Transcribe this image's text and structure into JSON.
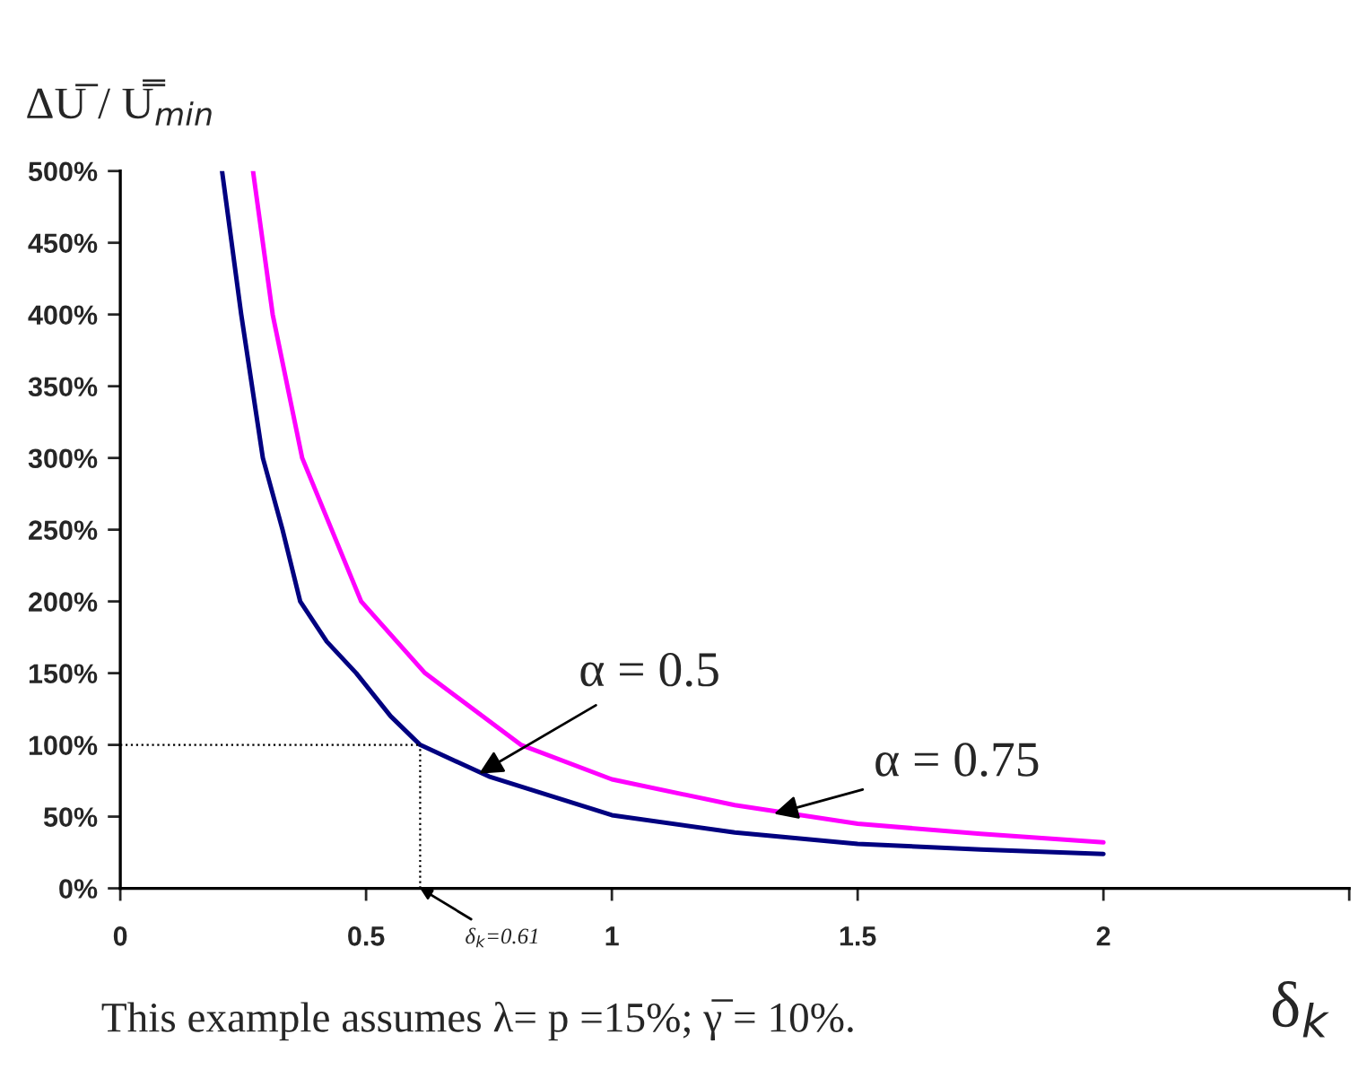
{
  "chart_data": {
    "type": "line",
    "ylabel": "ΔU̅ / U̿$_{min}$",
    "xlabel": "δ$_{k}$",
    "series": [
      {
        "color": "#000080",
        "x": [
          0.207,
          0.246,
          0.29,
          0.33,
          0.366,
          0.42,
          0.48,
          0.55,
          0.61,
          0.75,
          1.0,
          1.25,
          1.5,
          1.75,
          2.0
        ],
        "values": [
          500,
          400,
          300,
          250,
          200,
          172,
          150,
          120,
          100,
          78,
          51,
          39,
          31,
          27,
          24
        ]
      },
      {
        "color": "#ff00ff",
        "x": [
          0.27,
          0.31,
          0.37,
          0.43,
          0.49,
          0.62,
          0.815,
          1.0,
          1.25,
          1.5,
          1.75,
          2.0
        ],
        "values": [
          500,
          400,
          300,
          250,
          200,
          150,
          100,
          76,
          58,
          45,
          38,
          32
        ]
      }
    ],
    "xlim": [
      0,
      2.5
    ],
    "xticks": [
      0,
      0.5,
      1,
      1.5,
      2,
      {
        "value": 2.5,
        "label": null
      }
    ],
    "ylim": [
      0,
      500
    ],
    "yticks": [
      {
        "value": 0,
        "label": "0%"
      },
      {
        "value": 50,
        "label": "50%"
      },
      {
        "value": 100,
        "label": "100%"
      },
      {
        "value": 150,
        "label": "150%"
      },
      {
        "value": 200,
        "label": "200%"
      },
      {
        "value": 250,
        "label": "250%"
      },
      {
        "value": 300,
        "label": "300%"
      },
      {
        "value": 350,
        "label": "350%"
      },
      {
        "value": 400,
        "label": "400%"
      },
      {
        "value": 450,
        "label": "450%"
      },
      {
        "value": 500,
        "label": "500%"
      }
    ],
    "ref_lines": [
      {
        "axis": "y",
        "value": 100,
        "line_style": "dotted",
        "color": "#000000"
      },
      {
        "axis": "x",
        "value": 0.61,
        "line_style": "dotted",
        "color": "#000000"
      }
    ],
    "annotations": [
      {
        "text": "α = 0.5",
        "x": 0.73,
        "y": 80
      },
      {
        "text": "α = 0.75",
        "x": 1.33,
        "y": 52
      },
      {
        "text": "δ$_{k}$=0.61",
        "x": 0.61,
        "y": 0
      },
      "This example assumes λ= p =15%; γ̅ = 10%."
    ],
    "grid": false,
    "legend": false,
    "marker": "none",
    "line_style": "solid"
  }
}
